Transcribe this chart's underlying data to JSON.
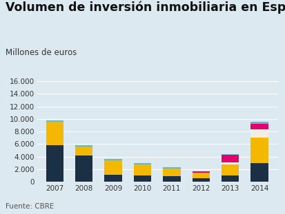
{
  "title": "Volumen de inversión inmobiliaria en España",
  "subtitle": "Millones de euros",
  "source": "Fuente: CBRE",
  "years": [
    "2007",
    "2008",
    "2009",
    "2010",
    "2011",
    "2012",
    "2013",
    "2014"
  ],
  "segments": {
    "dark_navy": [
      5800,
      4150,
      1100,
      1050,
      950,
      600,
      1050,
      2950
    ],
    "yellow": [
      3700,
      1450,
      2350,
      1750,
      1200,
      900,
      1700,
      4100
    ],
    "white_gap": [
      0,
      0,
      0,
      0,
      0,
      0,
      300,
      1300
    ],
    "magenta": [
      0,
      0,
      0,
      0,
      0,
      150,
      1200,
      900
    ],
    "teal": [
      250,
      250,
      200,
      200,
      150,
      0,
      200,
      250
    ]
  },
  "colors": {
    "dark_navy": "#1b2f45",
    "yellow": "#f5b800",
    "white_gap": "#f2ede6",
    "magenta": "#e5006e",
    "teal": "#5bbfc9"
  },
  "ylim": [
    0,
    17000
  ],
  "yticks": [
    0,
    2000,
    4000,
    6000,
    8000,
    10000,
    12000,
    14000,
    16000
  ],
  "background_color": "#dce9f0",
  "title_fontsize": 12.5,
  "subtitle_fontsize": 8.5,
  "source_fontsize": 7.5,
  "tick_fontsize": 7.5,
  "bar_width": 0.6
}
